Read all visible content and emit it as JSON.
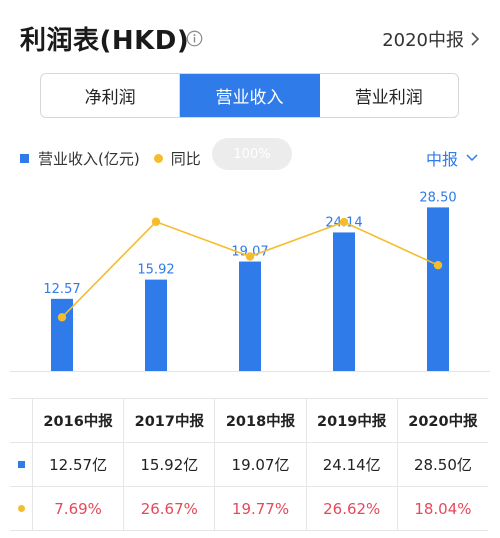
{
  "header": {
    "title": "利润表(HKD)",
    "period": "2020中报"
  },
  "tabs": [
    {
      "label": "净利润",
      "active": false
    },
    {
      "label": "营业收入",
      "active": true
    },
    {
      "label": "营业利润",
      "active": false
    }
  ],
  "legend": {
    "revenue": "营业收入(亿元)",
    "yoy": "同比",
    "pill": "100%"
  },
  "dropdown": {
    "label": "中报"
  },
  "colors": {
    "accent": "#2f7bea",
    "line": "#f5bd2d",
    "rate": "#e5495a"
  },
  "chart_data": {
    "type": "bar",
    "categories": [
      "2016中报",
      "2017中报",
      "2018中报",
      "2019中报",
      "2020中报"
    ],
    "series": [
      {
        "name": "营业收入(亿元)",
        "type": "bar",
        "values": [
          12.57,
          15.92,
          19.07,
          24.14,
          28.5
        ],
        "labels": [
          "12.57",
          "15.92",
          "19.07",
          "24.14",
          "28.50"
        ]
      },
      {
        "name": "同比",
        "type": "line",
        "values": [
          7.69,
          26.67,
          19.77,
          26.62,
          18.04
        ]
      }
    ],
    "ylim": [
      0,
      30
    ]
  },
  "table": {
    "headers": [
      "2016中报",
      "2017中报",
      "2018中报",
      "2019中报",
      "2020中报"
    ],
    "revenue": [
      "12.57亿",
      "15.92亿",
      "19.07亿",
      "24.14亿",
      "28.50亿"
    ],
    "yoy": [
      "7.69%",
      "26.67%",
      "19.77%",
      "26.62%",
      "18.04%"
    ]
  }
}
